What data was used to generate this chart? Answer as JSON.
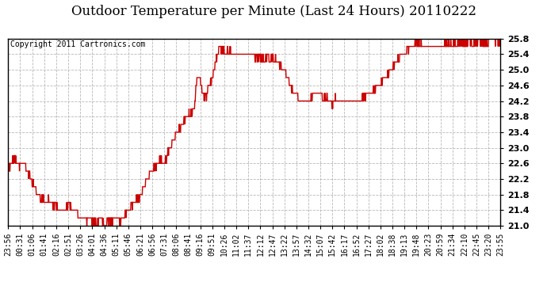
{
  "title": "Outdoor Temperature per Minute (Last 24 Hours) 20110222",
  "copyright_text": "Copyright 2011 Cartronics.com",
  "line_color": "#cc0000",
  "background_color": "#ffffff",
  "grid_color": "#b0b0b0",
  "ylim": [
    21.0,
    25.8
  ],
  "yticks": [
    21.0,
    21.4,
    21.8,
    22.2,
    22.6,
    23.0,
    23.4,
    23.8,
    24.2,
    24.6,
    25.0,
    25.4,
    25.8
  ],
  "xtick_labels": [
    "23:56",
    "00:31",
    "01:06",
    "01:41",
    "02:16",
    "02:51",
    "03:26",
    "04:01",
    "04:36",
    "05:11",
    "05:46",
    "06:21",
    "06:56",
    "07:31",
    "08:06",
    "08:41",
    "09:16",
    "09:51",
    "10:26",
    "11:02",
    "11:37",
    "12:12",
    "12:47",
    "13:22",
    "13:57",
    "14:32",
    "15:07",
    "15:42",
    "16:17",
    "16:52",
    "17:27",
    "18:02",
    "18:38",
    "19:13",
    "19:48",
    "20:23",
    "20:59",
    "21:34",
    "22:10",
    "22:45",
    "23:20",
    "23:55"
  ],
  "title_fontsize": 12,
  "copyright_fontsize": 7,
  "tick_fontsize": 7,
  "keypoints": [
    [
      0,
      22.5
    ],
    [
      5,
      22.5
    ],
    [
      10,
      22.6
    ],
    [
      18,
      22.75
    ],
    [
      22,
      22.7
    ],
    [
      28,
      22.6
    ],
    [
      35,
      22.5
    ],
    [
      38,
      22.6
    ],
    [
      42,
      22.7
    ],
    [
      46,
      22.6
    ],
    [
      50,
      22.5
    ],
    [
      55,
      22.4
    ],
    [
      60,
      22.35
    ],
    [
      65,
      22.25
    ],
    [
      72,
      22.1
    ],
    [
      78,
      22.0
    ],
    [
      85,
      21.85
    ],
    [
      92,
      21.75
    ],
    [
      100,
      21.7
    ],
    [
      108,
      21.65
    ],
    [
      115,
      21.7
    ],
    [
      122,
      21.6
    ],
    [
      130,
      21.55
    ],
    [
      138,
      21.5
    ],
    [
      145,
      21.5
    ],
    [
      152,
      21.4
    ],
    [
      160,
      21.4
    ],
    [
      168,
      21.45
    ],
    [
      175,
      21.55
    ],
    [
      180,
      21.5
    ],
    [
      188,
      21.4
    ],
    [
      195,
      21.35
    ],
    [
      202,
      21.3
    ],
    [
      210,
      21.25
    ],
    [
      220,
      21.2
    ],
    [
      230,
      21.15
    ],
    [
      238,
      21.2
    ],
    [
      245,
      21.15
    ],
    [
      252,
      21.1
    ],
    [
      260,
      21.1
    ],
    [
      268,
      21.15
    ],
    [
      275,
      21.1
    ],
    [
      280,
      21.05
    ],
    [
      288,
      21.1
    ],
    [
      295,
      21.15
    ],
    [
      300,
      21.1
    ],
    [
      308,
      21.15
    ],
    [
      316,
      21.2
    ],
    [
      322,
      21.15
    ],
    [
      328,
      21.1
    ],
    [
      335,
      21.2
    ],
    [
      342,
      21.3
    ],
    [
      350,
      21.4
    ],
    [
      358,
      21.5
    ],
    [
      365,
      21.55
    ],
    [
      372,
      21.6
    ],
    [
      380,
      21.65
    ],
    [
      388,
      21.8
    ],
    [
      395,
      21.95
    ],
    [
      402,
      22.1
    ],
    [
      410,
      22.25
    ],
    [
      418,
      22.4
    ],
    [
      425,
      22.5
    ],
    [
      432,
      22.55
    ],
    [
      440,
      22.65
    ],
    [
      448,
      22.7
    ],
    [
      452,
      22.6
    ],
    [
      458,
      22.65
    ],
    [
      464,
      22.8
    ],
    [
      470,
      22.9
    ],
    [
      475,
      23.0
    ],
    [
      480,
      23.15
    ],
    [
      486,
      23.25
    ],
    [
      492,
      23.35
    ],
    [
      498,
      23.45
    ],
    [
      504,
      23.55
    ],
    [
      510,
      23.65
    ],
    [
      516,
      23.7
    ],
    [
      520,
      23.75
    ],
    [
      526,
      23.8
    ],
    [
      530,
      23.85
    ],
    [
      535,
      23.9
    ],
    [
      540,
      24.0
    ],
    [
      545,
      24.1
    ],
    [
      548,
      24.4
    ],
    [
      552,
      24.75
    ],
    [
      555,
      24.8
    ],
    [
      558,
      24.85
    ],
    [
      562,
      24.75
    ],
    [
      565,
      24.6
    ],
    [
      568,
      24.4
    ],
    [
      572,
      24.35
    ],
    [
      575,
      24.3
    ],
    [
      578,
      24.35
    ],
    [
      582,
      24.4
    ],
    [
      586,
      24.55
    ],
    [
      590,
      24.6
    ],
    [
      595,
      24.75
    ],
    [
      600,
      24.9
    ],
    [
      604,
      25.1
    ],
    [
      608,
      25.25
    ],
    [
      612,
      25.4
    ],
    [
      616,
      25.5
    ],
    [
      620,
      25.55
    ],
    [
      624,
      25.5
    ],
    [
      628,
      25.55
    ],
    [
      632,
      25.45
    ],
    [
      636,
      25.4
    ],
    [
      640,
      25.5
    ],
    [
      644,
      25.45
    ],
    [
      648,
      25.5
    ],
    [
      652,
      25.4
    ],
    [
      656,
      25.45
    ],
    [
      660,
      25.4
    ],
    [
      664,
      25.45
    ],
    [
      668,
      25.4
    ],
    [
      672,
      25.45
    ],
    [
      676,
      25.4
    ],
    [
      680,
      25.45
    ],
    [
      684,
      25.4
    ],
    [
      688,
      25.45
    ],
    [
      692,
      25.4
    ],
    [
      698,
      25.45
    ],
    [
      704,
      25.4
    ],
    [
      710,
      25.45
    ],
    [
      716,
      25.4
    ],
    [
      722,
      25.35
    ],
    [
      730,
      25.3
    ],
    [
      740,
      25.3
    ],
    [
      750,
      25.25
    ],
    [
      758,
      25.3
    ],
    [
      766,
      25.25
    ],
    [
      774,
      25.3
    ],
    [
      782,
      25.25
    ],
    [
      790,
      25.2
    ],
    [
      798,
      25.1
    ],
    [
      806,
      25.0
    ],
    [
      814,
      24.9
    ],
    [
      820,
      24.75
    ],
    [
      826,
      24.6
    ],
    [
      832,
      24.5
    ],
    [
      838,
      24.4
    ],
    [
      844,
      24.3
    ],
    [
      850,
      24.25
    ],
    [
      856,
      24.2
    ],
    [
      862,
      24.15
    ],
    [
      868,
      24.2
    ],
    [
      874,
      24.25
    ],
    [
      880,
      24.2
    ],
    [
      886,
      24.3
    ],
    [
      892,
      24.4
    ],
    [
      898,
      24.45
    ],
    [
      904,
      24.4
    ],
    [
      910,
      24.35
    ],
    [
      916,
      24.3
    ],
    [
      922,
      24.25
    ],
    [
      928,
      24.3
    ],
    [
      934,
      24.25
    ],
    [
      940,
      24.2
    ],
    [
      946,
      24.15
    ],
    [
      952,
      24.2
    ],
    [
      958,
      24.25
    ],
    [
      962,
      24.2
    ],
    [
      968,
      24.25
    ],
    [
      974,
      24.2
    ],
    [
      980,
      24.2
    ],
    [
      990,
      24.2
    ],
    [
      1000,
      24.25
    ],
    [
      1010,
      24.2
    ],
    [
      1020,
      24.2
    ],
    [
      1030,
      24.25
    ],
    [
      1040,
      24.3
    ],
    [
      1050,
      24.35
    ],
    [
      1060,
      24.4
    ],
    [
      1070,
      24.5
    ],
    [
      1080,
      24.55
    ],
    [
      1090,
      24.65
    ],
    [
      1100,
      24.75
    ],
    [
      1110,
      24.85
    ],
    [
      1120,
      25.0
    ],
    [
      1130,
      25.15
    ],
    [
      1140,
      25.25
    ],
    [
      1150,
      25.35
    ],
    [
      1160,
      25.45
    ],
    [
      1170,
      25.55
    ],
    [
      1180,
      25.6
    ],
    [
      1186,
      25.65
    ],
    [
      1192,
      25.7
    ],
    [
      1198,
      25.65
    ],
    [
      1204,
      25.7
    ],
    [
      1210,
      25.65
    ],
    [
      1216,
      25.6
    ],
    [
      1222,
      25.65
    ],
    [
      1228,
      25.55
    ],
    [
      1234,
      25.6
    ],
    [
      1240,
      25.55
    ],
    [
      1246,
      25.6
    ],
    [
      1252,
      25.55
    ],
    [
      1258,
      25.6
    ],
    [
      1264,
      25.65
    ],
    [
      1270,
      25.6
    ],
    [
      1276,
      25.65
    ],
    [
      1282,
      25.7
    ],
    [
      1288,
      25.65
    ],
    [
      1294,
      25.7
    ],
    [
      1300,
      25.65
    ],
    [
      1306,
      25.7
    ],
    [
      1312,
      25.65
    ],
    [
      1318,
      25.7
    ],
    [
      1324,
      25.75
    ],
    [
      1330,
      25.7
    ],
    [
      1336,
      25.65
    ],
    [
      1342,
      25.7
    ],
    [
      1348,
      25.75
    ],
    [
      1354,
      25.7
    ],
    [
      1360,
      25.65
    ],
    [
      1366,
      25.7
    ],
    [
      1372,
      25.75
    ],
    [
      1378,
      25.8
    ],
    [
      1384,
      25.75
    ],
    [
      1390,
      25.7
    ],
    [
      1396,
      25.65
    ],
    [
      1402,
      25.7
    ],
    [
      1408,
      25.75
    ],
    [
      1414,
      25.8
    ],
    [
      1420,
      25.75
    ],
    [
      1426,
      25.7
    ],
    [
      1432,
      25.75
    ],
    [
      1438,
      25.8
    ],
    [
      1440,
      25.8
    ]
  ]
}
